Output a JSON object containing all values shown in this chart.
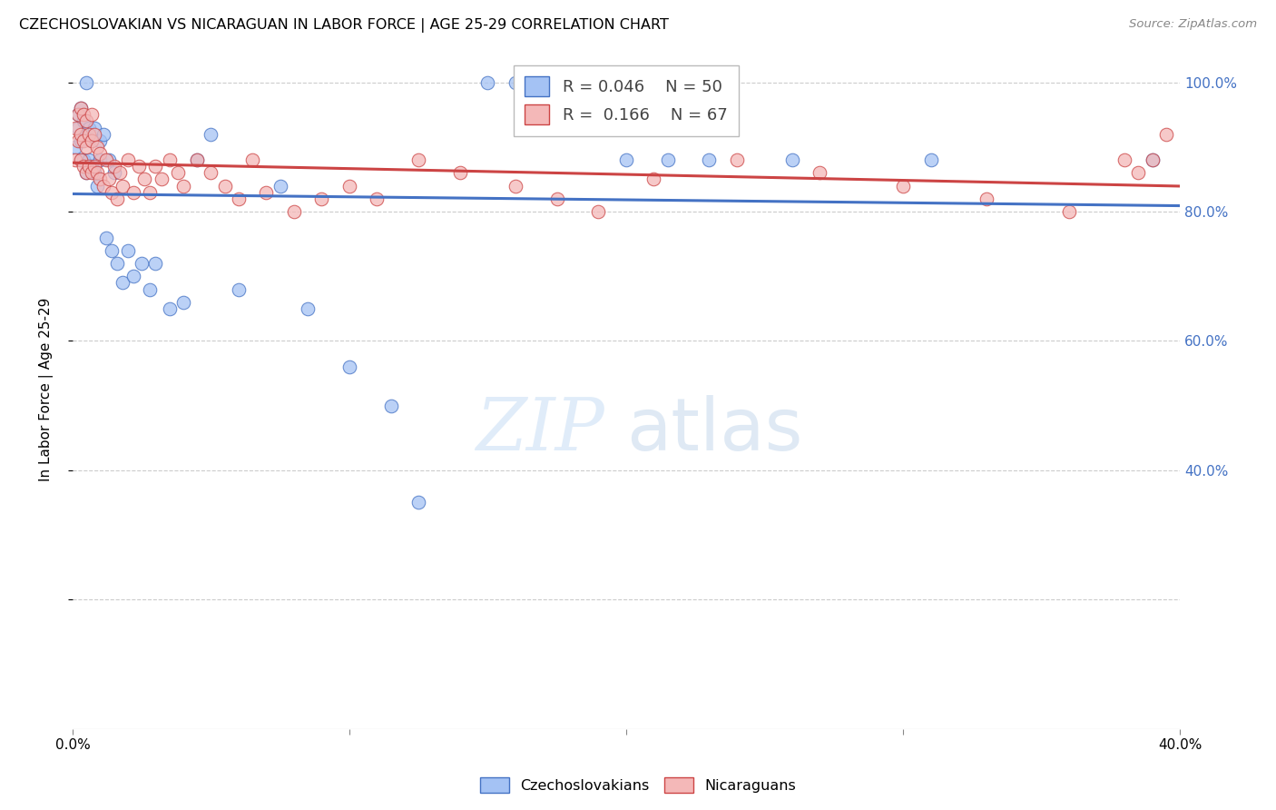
{
  "title": "CZECHOSLOVAKIAN VS NICARAGUAN IN LABOR FORCE | AGE 25-29 CORRELATION CHART",
  "source": "Source: ZipAtlas.com",
  "ylabel": "In Labor Force | Age 25-29",
  "xlim": [
    0.0,
    0.4
  ],
  "ylim": [
    0.0,
    1.05
  ],
  "blue_R": 0.046,
  "blue_N": 50,
  "pink_R": 0.166,
  "pink_N": 67,
  "blue_color": "#a4c2f4",
  "pink_color": "#f4b8b8",
  "trend_blue": "#4472c4",
  "trend_pink": "#cc4444",
  "blue_edge": "#4472c4",
  "pink_edge": "#cc4444",
  "legend_blue_label": "Czechoslovakians",
  "legend_pink_label": "Nicaraguans",
  "grid_color": "#cccccc",
  "background_color": "#ffffff",
  "blue_x": [
    0.001,
    0.002,
    0.002,
    0.003,
    0.003,
    0.003,
    0.004,
    0.004,
    0.005,
    0.005,
    0.005,
    0.006,
    0.006,
    0.007,
    0.007,
    0.008,
    0.008,
    0.009,
    0.01,
    0.01,
    0.011,
    0.012,
    0.013,
    0.014,
    0.015,
    0.016,
    0.018,
    0.02,
    0.022,
    0.025,
    0.028,
    0.03,
    0.035,
    0.04,
    0.045,
    0.05,
    0.06,
    0.075,
    0.085,
    0.1,
    0.115,
    0.125,
    0.15,
    0.16,
    0.2,
    0.215,
    0.23,
    0.26,
    0.31,
    0.39
  ],
  "blue_y": [
    0.9,
    0.93,
    0.95,
    0.88,
    0.91,
    0.96,
    0.88,
    0.94,
    0.86,
    0.92,
    1.0,
    0.88,
    0.93,
    0.87,
    0.91,
    0.86,
    0.93,
    0.84,
    0.88,
    0.91,
    0.92,
    0.76,
    0.88,
    0.74,
    0.86,
    0.72,
    0.69,
    0.74,
    0.7,
    0.72,
    0.68,
    0.72,
    0.65,
    0.66,
    0.88,
    0.92,
    0.68,
    0.84,
    0.65,
    0.56,
    0.5,
    0.35,
    1.0,
    1.0,
    0.88,
    0.88,
    0.88,
    0.88,
    0.88,
    0.88
  ],
  "pink_x": [
    0.001,
    0.001,
    0.002,
    0.002,
    0.003,
    0.003,
    0.003,
    0.004,
    0.004,
    0.004,
    0.005,
    0.005,
    0.005,
    0.006,
    0.006,
    0.007,
    0.007,
    0.007,
    0.008,
    0.008,
    0.009,
    0.009,
    0.01,
    0.01,
    0.011,
    0.012,
    0.013,
    0.014,
    0.015,
    0.016,
    0.017,
    0.018,
    0.02,
    0.022,
    0.024,
    0.026,
    0.028,
    0.03,
    0.032,
    0.035,
    0.038,
    0.04,
    0.045,
    0.05,
    0.055,
    0.06,
    0.065,
    0.07,
    0.08,
    0.09,
    0.1,
    0.11,
    0.125,
    0.14,
    0.16,
    0.175,
    0.19,
    0.21,
    0.24,
    0.27,
    0.3,
    0.33,
    0.36,
    0.38,
    0.385,
    0.39,
    0.395
  ],
  "pink_y": [
    0.93,
    0.88,
    0.91,
    0.95,
    0.88,
    0.92,
    0.96,
    0.87,
    0.91,
    0.95,
    0.86,
    0.9,
    0.94,
    0.87,
    0.92,
    0.86,
    0.91,
    0.95,
    0.87,
    0.92,
    0.86,
    0.9,
    0.85,
    0.89,
    0.84,
    0.88,
    0.85,
    0.83,
    0.87,
    0.82,
    0.86,
    0.84,
    0.88,
    0.83,
    0.87,
    0.85,
    0.83,
    0.87,
    0.85,
    0.88,
    0.86,
    0.84,
    0.88,
    0.86,
    0.84,
    0.82,
    0.88,
    0.83,
    0.8,
    0.82,
    0.84,
    0.82,
    0.88,
    0.86,
    0.84,
    0.82,
    0.8,
    0.85,
    0.88,
    0.86,
    0.84,
    0.82,
    0.8,
    0.88,
    0.86,
    0.88,
    0.92
  ]
}
